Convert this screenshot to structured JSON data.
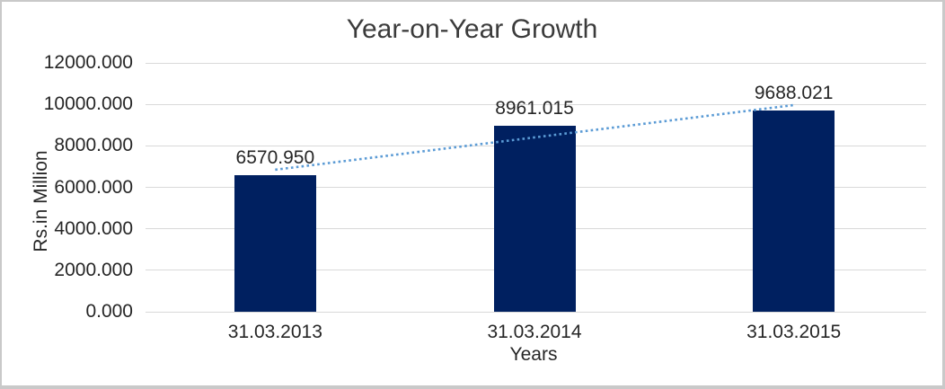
{
  "chart_data": {
    "type": "bar",
    "title": "Year-on-Year Growth",
    "xlabel": "Years",
    "ylabel": "Rs.in Million",
    "categories": [
      "31.03.2013",
      "31.03.2014",
      "31.03.2015"
    ],
    "values": [
      6570.95,
      8961.015,
      9688.021
    ],
    "data_labels": [
      "6570.950",
      "8961.015",
      "9688.021"
    ],
    "ylim": [
      0,
      12000
    ],
    "ytick_step": 2000,
    "ytick_labels": [
      "0.000",
      "2000.000",
      "4000.000",
      "6000.000",
      "8000.000",
      "10000.000",
      "12000.000"
    ],
    "grid": true,
    "legend": "none",
    "trendline": {
      "type": "linear",
      "style": "dotted",
      "color": "#5B9BD5"
    },
    "colors": {
      "bar": "#002060",
      "trendline": "#5B9BD5",
      "gridline": "#D9D9D9",
      "title": "#3B3B3B",
      "labels": "#262626",
      "frame_border": "#C9C9C9",
      "background": "#FFFFFF"
    }
  }
}
